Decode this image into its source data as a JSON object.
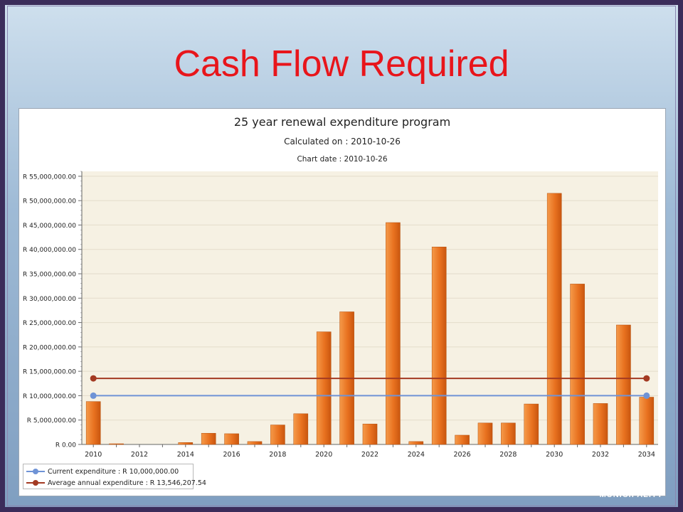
{
  "slide": {
    "title": "Cash Flow Required",
    "brand": "MUNICIPALITY"
  },
  "colors": {
    "title": "#e8151b",
    "bar": "#e8711f",
    "current_line": "#6f93d6",
    "average_line": "#a33a22",
    "plot_background": "#f6f1e3"
  },
  "chart_data": {
    "type": "bar",
    "title": "25 year renewal expenditure program",
    "subtitle": "Calculated on : 2010-10-26",
    "subtitle2": "Chart date : 2010-10-26",
    "xlabel": "",
    "ylabel": "",
    "ylim": [
      0,
      56000000
    ],
    "yticks": [
      0,
      5000000,
      10000000,
      15000000,
      20000000,
      25000000,
      30000000,
      35000000,
      40000000,
      45000000,
      50000000,
      55000000
    ],
    "ytick_labels": [
      "R 0.00",
      "R 5,000,000.00",
      "R 10,000,000.00",
      "R 15,000,000.00",
      "R 20,000,000.00",
      "R 25,000,000.00",
      "R 30,000,000.00",
      "R 35,000,000.00",
      "R 40,000,000.00",
      "R 45,000,000.00",
      "R 50,000,000.00",
      "R 55,000,000.00"
    ],
    "categories": [
      2010,
      2011,
      2012,
      2013,
      2014,
      2015,
      2016,
      2017,
      2018,
      2019,
      2020,
      2021,
      2022,
      2023,
      2024,
      2025,
      2026,
      2027,
      2028,
      2029,
      2030,
      2031,
      2032,
      2033,
      2034
    ],
    "xtick_labels": [
      "2010",
      "2012",
      "2014",
      "2016",
      "2018",
      "2020",
      "2022",
      "2024",
      "2026",
      "2028",
      "2030",
      "2032",
      "2034"
    ],
    "series": [
      {
        "type": "bar",
        "values": [
          8800000,
          100000,
          0,
          0,
          400000,
          2300000,
          2200000,
          600000,
          4000000,
          6300000,
          23100000,
          27200000,
          4200000,
          45500000,
          600000,
          40500000,
          1900000,
          4400000,
          4400000,
          8300000,
          51500000,
          32900000,
          8400000,
          24500000,
          9700000
        ]
      },
      {
        "type": "line",
        "name": "Current expenditure : R 10,000,000.00",
        "value": 10000000
      },
      {
        "type": "line",
        "name": "Average annual expenditure : R 13,546,207.54",
        "value": 13546207.54
      }
    ],
    "grid": true,
    "legend_position": "bottom-left"
  }
}
